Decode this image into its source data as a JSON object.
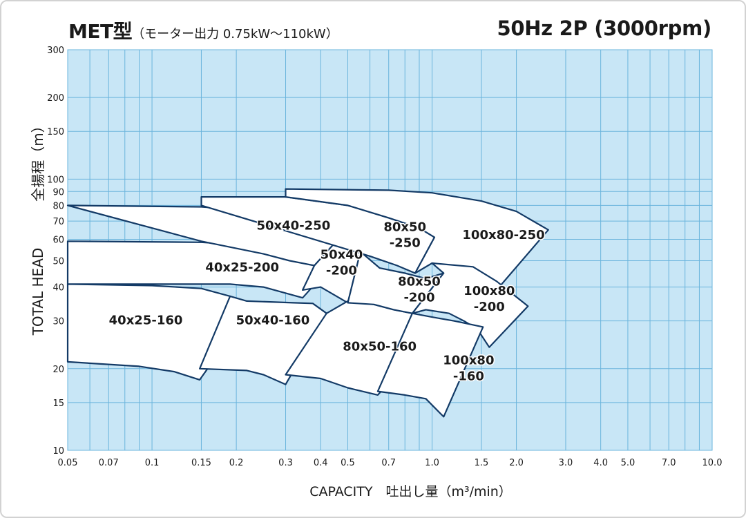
{
  "header": {
    "title": "MET型",
    "subtitle": "（モーター出力 0.75kW〜110kW）",
    "spec": "50Hz 2P (3000rpm)"
  },
  "chart_data": {
    "type": "area",
    "x_scale": "log",
    "y_scale": "log",
    "xlim": [
      0.05,
      10.0
    ],
    "ylim": [
      10,
      300
    ],
    "grid": true,
    "xlabel": "CAPACITY　吐出し量（m³/min）",
    "ylabel_en": "TOTAL HEAD",
    "ylabel_jp": "全揚程（m）",
    "x_ticks": [
      {
        "v": 0.05,
        "t": "0.05"
      },
      {
        "v": 0.07,
        "t": "0.07"
      },
      {
        "v": 0.1,
        "t": "0.1"
      },
      {
        "v": 0.15,
        "t": "0.15"
      },
      {
        "v": 0.2,
        "t": "0.2"
      },
      {
        "v": 0.3,
        "t": "0.3"
      },
      {
        "v": 0.4,
        "t": "0.4"
      },
      {
        "v": 0.5,
        "t": "0.5"
      },
      {
        "v": 0.7,
        "t": "0.7"
      },
      {
        "v": 1.0,
        "t": "1.0"
      },
      {
        "v": 1.5,
        "t": "1.5"
      },
      {
        "v": 2.0,
        "t": "2.0"
      },
      {
        "v": 3.0,
        "t": "3.0"
      },
      {
        "v": 4.0,
        "t": "4.0"
      },
      {
        "v": 5.0,
        "t": "5.0"
      },
      {
        "v": 7.0,
        "t": "7.0"
      },
      {
        "v": 10.0,
        "t": "10.0"
      }
    ],
    "y_ticks": [
      {
        "v": 10,
        "t": "10"
      },
      {
        "v": 15,
        "t": "15"
      },
      {
        "v": 20,
        "t": "20"
      },
      {
        "v": 30,
        "t": "30"
      },
      {
        "v": 40,
        "t": "40"
      },
      {
        "v": 50,
        "t": "50"
      },
      {
        "v": 60,
        "t": "60"
      },
      {
        "v": 70,
        "t": "70"
      },
      {
        "v": 80,
        "t": "80"
      },
      {
        "v": 90,
        "t": "90"
      },
      {
        "v": 100,
        "t": "100"
      },
      {
        "v": 150,
        "t": "150"
      },
      {
        "v": 200,
        "t": "200"
      },
      {
        "v": 300,
        "t": "300"
      }
    ],
    "grid_x": [
      0.05,
      0.06,
      0.07,
      0.08,
      0.09,
      0.1,
      0.15,
      0.2,
      0.3,
      0.4,
      0.5,
      0.6,
      0.7,
      0.8,
      0.9,
      1.0,
      1.5,
      2.0,
      3.0,
      4.0,
      5.0,
      6.0,
      7.0,
      8.0,
      9.0,
      10.0
    ],
    "grid_y": [
      10,
      15,
      20,
      30,
      40,
      50,
      60,
      70,
      80,
      90,
      100,
      150,
      200,
      300
    ],
    "colors": {
      "plot_bg": "#c8e6f6",
      "grid": "#6ab4dc",
      "outline": "#133a66",
      "region_fill": "#ffffff"
    },
    "regions": [
      {
        "label": [
          "40x25-160"
        ],
        "label_at": [
          0.095,
          30
        ],
        "points": [
          [
            0.05,
            41
          ],
          [
            0.1,
            40.5
          ],
          [
            0.15,
            39.5
          ],
          [
            0.19,
            37
          ],
          [
            0.218,
            32
          ],
          [
            0.148,
            18.2
          ],
          [
            0.12,
            19.5
          ],
          [
            0.09,
            20.4
          ],
          [
            0.05,
            21.2
          ]
        ]
      },
      {
        "label": [
          "50x40-160"
        ],
        "label_at": [
          0.27,
          30
        ],
        "points": [
          [
            0.19,
            37
          ],
          [
            0.218,
            35.5
          ],
          [
            0.32,
            35
          ],
          [
            0.375,
            34.8
          ],
          [
            0.42,
            32
          ],
          [
            0.3,
            17.5
          ],
          [
            0.25,
            19
          ],
          [
            0.218,
            19.7
          ],
          [
            0.148,
            20
          ]
        ]
      },
      {
        "label": [
          "40x25-200"
        ],
        "label_at": [
          0.21,
          47
        ],
        "points": [
          [
            0.05,
            59
          ],
          [
            0.15,
            58.5
          ],
          [
            0.25,
            56.5
          ],
          [
            0.32,
            53.5
          ],
          [
            0.37,
            50
          ],
          [
            0.41,
            44.5
          ],
          [
            0.345,
            36.5
          ],
          [
            0.25,
            40
          ],
          [
            0.19,
            41
          ],
          [
            0.1,
            41
          ],
          [
            0.05,
            41
          ]
        ]
      },
      {
        "label": [
          "50x40-250"
        ],
        "label_at": [
          0.32,
          67
        ],
        "points": [
          [
            0.05,
            80
          ],
          [
            0.15,
            79
          ],
          [
            0.25,
            76
          ],
          [
            0.35,
            73
          ],
          [
            0.5,
            69
          ],
          [
            0.455,
            59
          ],
          [
            0.38,
            48
          ],
          [
            0.31,
            50
          ],
          [
            0.25,
            53
          ],
          [
            0.15,
            59
          ]
        ]
      },
      {
        "label": [
          "50x40",
          "-200"
        ],
        "label_at": [
          0.475,
          49
        ],
        "points": [
          [
            0.455,
            59
          ],
          [
            0.51,
            57
          ],
          [
            0.555,
            54
          ],
          [
            0.5,
            35
          ],
          [
            0.4,
            40
          ],
          [
            0.345,
            39
          ],
          [
            0.38,
            48
          ]
        ]
      },
      {
        "label": [
          "80x50-160"
        ],
        "label_at": [
          0.65,
          24
        ],
        "points": [
          [
            0.42,
            32
          ],
          [
            0.5,
            35.5
          ],
          [
            0.62,
            34.5
          ],
          [
            0.73,
            33
          ],
          [
            0.85,
            32
          ],
          [
            1.08,
            29
          ],
          [
            0.64,
            16
          ],
          [
            0.5,
            17
          ],
          [
            0.4,
            18.4
          ],
          [
            0.3,
            19
          ]
        ]
      },
      {
        "label": [
          "80x50",
          "-250"
        ],
        "label_at": [
          0.8,
          62
        ],
        "points": [
          [
            0.15,
            80
          ],
          [
            0.15,
            86
          ],
          [
            0.3,
            86
          ],
          [
            0.5,
            80
          ],
          [
            0.7,
            72
          ],
          [
            0.9,
            66
          ],
          [
            1.02,
            61
          ],
          [
            0.87,
            45
          ],
          [
            0.75,
            48
          ],
          [
            0.6,
            52
          ],
          [
            0.5,
            55
          ]
        ]
      },
      {
        "label": [
          "80x50",
          "-200"
        ],
        "label_at": [
          0.9,
          39
        ],
        "points": [
          [
            0.555,
            54
          ],
          [
            0.65,
            47
          ],
          [
            0.8,
            45
          ],
          [
            0.95,
            43
          ],
          [
            1.1,
            45
          ],
          [
            0.85,
            32
          ],
          [
            0.73,
            33
          ],
          [
            0.62,
            34.5
          ],
          [
            0.5,
            35
          ]
        ]
      },
      {
        "label": [
          "100x80-250"
        ],
        "label_at": [
          1.8,
          62
        ],
        "points": [
          [
            0.3,
            86
          ],
          [
            0.3,
            92
          ],
          [
            0.7,
            91
          ],
          [
            1.0,
            89
          ],
          [
            1.5,
            83
          ],
          [
            2.0,
            76
          ],
          [
            2.6,
            65
          ],
          [
            1.7,
            39
          ],
          [
            1.5,
            43
          ],
          [
            1.2,
            47
          ],
          [
            1.0,
            49
          ],
          [
            0.87,
            45
          ],
          [
            1.02,
            61
          ],
          [
            0.9,
            66
          ],
          [
            0.7,
            72
          ],
          [
            0.5,
            80
          ]
        ]
      },
      {
        "label": [
          "100x80",
          "-200"
        ],
        "label_at": [
          1.6,
          36
        ],
        "points": [
          [
            1.0,
            49
          ],
          [
            1.4,
            47.5
          ],
          [
            1.7,
            42
          ],
          [
            2.2,
            34
          ],
          [
            1.6,
            24
          ],
          [
            1.45,
            28
          ],
          [
            1.3,
            30
          ],
          [
            1.15,
            32
          ],
          [
            0.95,
            33
          ],
          [
            0.85,
            32
          ],
          [
            1.1,
            45
          ]
        ]
      },
      {
        "label": [
          "100x80",
          "-160"
        ],
        "label_at": [
          1.35,
          20
        ],
        "points": [
          [
            0.85,
            32
          ],
          [
            1.0,
            31
          ],
          [
            1.2,
            30
          ],
          [
            1.52,
            28.5
          ],
          [
            1.1,
            13.3
          ],
          [
            0.95,
            15.5
          ],
          [
            0.8,
            16
          ],
          [
            0.64,
            16.5
          ]
        ]
      }
    ]
  }
}
